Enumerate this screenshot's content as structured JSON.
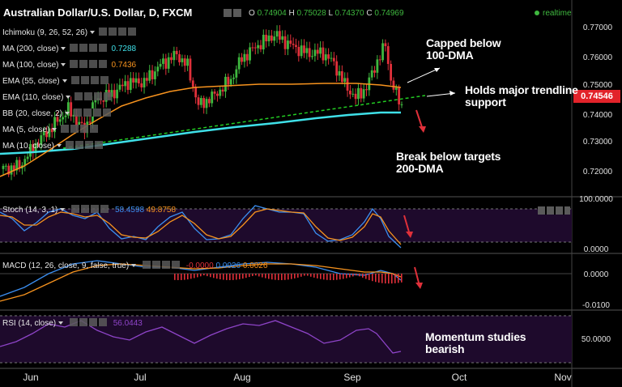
{
  "header": {
    "symbol_title": "Australian Dollar/U.S. Dollar, D, FXCM",
    "ohlc": {
      "o_label": "O",
      "o": "0.74904",
      "h_label": "H",
      "h": "0.75028",
      "l_label": "L",
      "l": "0.74370",
      "c_label": "C",
      "c": "0.74969"
    },
    "realtime": "realtime"
  },
  "indicators": [
    {
      "label": "Ichimoku (9, 26, 52, 26)",
      "value": "",
      "color": ""
    },
    {
      "label": "MA (200, close)",
      "value": "0.7288",
      "color": "#3fe0e8"
    },
    {
      "label": "MA (100, close)",
      "value": "0.7436",
      "color": "#f7931e"
    },
    {
      "label": "EMA (55, close)",
      "value": "",
      "color": ""
    },
    {
      "label": "EMA (110, close)",
      "value": "",
      "color": ""
    },
    {
      "label": "BB (20, close, 2)",
      "value": "",
      "color": ""
    },
    {
      "label": "MA (5, close)",
      "value": "",
      "color": ""
    },
    {
      "label": "MA (10, close)",
      "value": "",
      "color": ""
    }
  ],
  "price_axis": [
    "0.77000",
    "0.76000",
    "0.75000",
    "0.74000",
    "0.73000",
    "0.72000"
  ],
  "current_price": "0.74546",
  "time_axis": [
    "Jun",
    "Jul",
    "Aug",
    "Sep",
    "Oct",
    "Nov"
  ],
  "annotations": {
    "capped": [
      "Capped below",
      "100-DMA"
    ],
    "holds": [
      "Holds major trendline",
      "support"
    ],
    "break": [
      "Break below targets",
      "200-DMA"
    ],
    "momentum": [
      "Momentum studies",
      "bearish"
    ]
  },
  "stoch": {
    "label": "Stoch (14, 3, 1)",
    "k": "58.4598",
    "d": "49.8758",
    "axis": [
      "100.0000",
      "0.0000"
    ]
  },
  "macd": {
    "label": "MACD (12, 26, close, 9, false, true)",
    "hist": "-0.0000",
    "macd": "0.0026",
    "signal": "0.0026",
    "axis": [
      "0.0000",
      "-0.0100"
    ]
  },
  "rsi": {
    "label": "RSI (14, close)",
    "value": "56.0443",
    "axis": [
      "50.0000"
    ]
  },
  "colors": {
    "bull": "#3fb83f",
    "bear": "#e0303a",
    "ma100": "#f7931e",
    "ma200": "#3fe0e8",
    "trend": "#22cc22",
    "stoch_k": "#3b8ef0",
    "stoch_d": "#f7931e",
    "macd_hist": "#e0303a",
    "rsi": "#8e44c8",
    "panel_bg": "#1e0a2c"
  },
  "chart_data": {
    "type": "candlestick",
    "x": [
      "Jun",
      "Jul",
      "Aug",
      "Sep",
      "Oct",
      "Nov"
    ],
    "ylim": [
      0.715,
      0.777
    ],
    "last": {
      "open": 0.74904,
      "high": 0.75028,
      "low": 0.7437,
      "close": 0.74969
    },
    "ma200_last": 0.7288,
    "ma100_last": 0.7436,
    "stoch": {
      "k": 58.4598,
      "d": 49.8758,
      "ylim": [
        0,
        100
      ]
    },
    "macd": {
      "hist": -0.0,
      "macd": 0.0026,
      "signal": 0.0026
    },
    "rsi": {
      "value": 56.0443
    }
  }
}
